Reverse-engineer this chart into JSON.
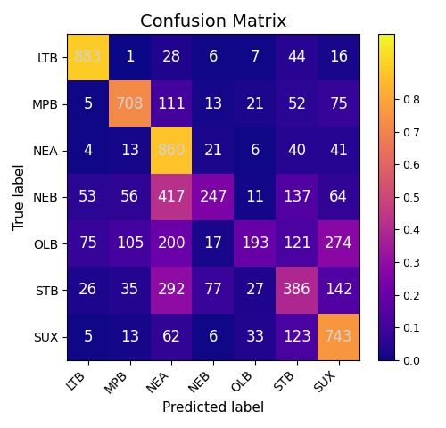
{
  "title": "Confusion Matrix",
  "xlabel": "Predicted label",
  "ylabel": "True label",
  "labels": [
    "LTB",
    "MPB",
    "NEA",
    "NEB",
    "OLB",
    "STB",
    "SUX"
  ],
  "matrix": [
    [
      883,
      1,
      28,
      6,
      7,
      44,
      16
    ],
    [
      5,
      708,
      111,
      13,
      21,
      52,
      75
    ],
    [
      4,
      13,
      860,
      21,
      6,
      40,
      41
    ],
    [
      53,
      56,
      417,
      247,
      11,
      137,
      64
    ],
    [
      75,
      105,
      200,
      17,
      193,
      121,
      274
    ],
    [
      26,
      35,
      292,
      77,
      27,
      386,
      142
    ],
    [
      5,
      13,
      62,
      6,
      33,
      123,
      743
    ]
  ],
  "cmap": "plasma",
  "vmin": 0.0,
  "vmax": 1.0,
  "text_color_threshold": 0.5,
  "title_fontsize": 14,
  "label_fontsize": 11,
  "tick_fontsize": 10,
  "annot_fontsize": 12,
  "cbar_ticks": [
    0.0,
    0.1,
    0.2,
    0.3,
    0.4,
    0.5,
    0.6,
    0.7,
    0.8
  ],
  "fig_width": 5.0,
  "fig_height": 4.8,
  "dpi": 100
}
